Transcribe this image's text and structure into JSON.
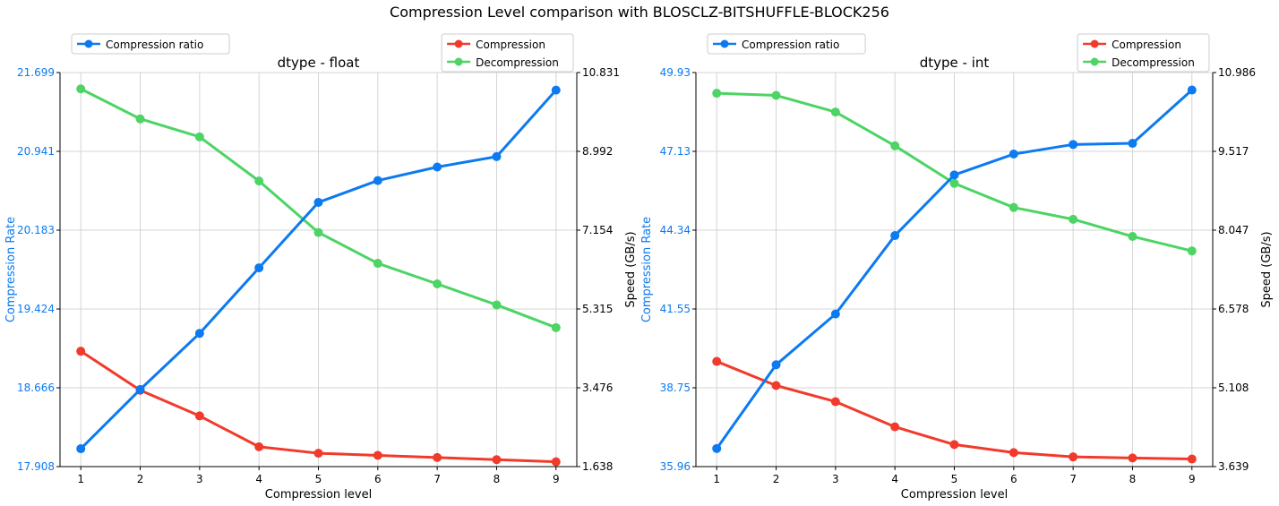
{
  "figure": {
    "title": "Compression Level comparison with BLOSCLZ-BITSHUFFLE-BLOCK256"
  },
  "colors": {
    "ratio": "#0c7af0",
    "compression": "#f23a2c",
    "decompression": "#4cd464",
    "left_axis_text": "#0c7af0",
    "grid": "#d4d4d4"
  },
  "chart_data": [
    {
      "type": "line",
      "title": "dtype - float",
      "xlabel": "Compression level",
      "ylabel_left": "Compression Rate",
      "ylabel_right": "Speed (GB/s)",
      "x": [
        1,
        2,
        3,
        4,
        5,
        6,
        7,
        8,
        9
      ],
      "ylim_left": [
        17.908,
        21.699
      ],
      "ylim_right": [
        1.638,
        10.831
      ],
      "yticks_left": [
        "17.908",
        "18.666",
        "19.424",
        "20.183",
        "20.941",
        "21.699"
      ],
      "yticks_right": [
        "1.638",
        "3.476",
        "5.315",
        "7.154",
        "8.992",
        "10.831"
      ],
      "grid": true,
      "legend_left": {
        "placement": "top-left",
        "entries": [
          "Compression ratio"
        ]
      },
      "legend_right": {
        "placement": "top-right",
        "entries": [
          "Compression",
          "Decompression"
        ]
      },
      "series": [
        {
          "name": "Compression ratio",
          "axis": "left",
          "values": [
            18.08,
            18.65,
            19.19,
            19.82,
            20.45,
            20.66,
            20.79,
            20.89,
            21.53
          ]
        },
        {
          "name": "Compression",
          "axis": "right",
          "values": [
            4.33,
            3.42,
            2.82,
            2.1,
            1.95,
            1.9,
            1.85,
            1.8,
            1.75
          ]
        },
        {
          "name": "Decompression",
          "axis": "right",
          "values": [
            10.45,
            9.75,
            9.33,
            8.3,
            7.1,
            6.38,
            5.9,
            5.41,
            4.88
          ]
        }
      ]
    },
    {
      "type": "line",
      "title": "dtype - int",
      "xlabel": "Compression level",
      "ylabel_left": "Compression Rate",
      "ylabel_right": "Speed (GB/s)",
      "x": [
        1,
        2,
        3,
        4,
        5,
        6,
        7,
        8,
        9
      ],
      "ylim_left": [
        35.96,
        49.93
      ],
      "ylim_right": [
        3.639,
        10.986
      ],
      "yticks_left": [
        "35.96",
        "38.75",
        "41.55",
        "44.34",
        "47.13",
        "49.93"
      ],
      "yticks_right": [
        "3.639",
        "5.108",
        "6.578",
        "8.047",
        "9.517",
        "10.986"
      ],
      "grid": true,
      "legend_left": {
        "placement": "top-left",
        "entries": [
          "Compression ratio"
        ]
      },
      "legend_right": {
        "placement": "top-right",
        "entries": [
          "Compression",
          "Decompression"
        ]
      },
      "series": [
        {
          "name": "Compression ratio",
          "axis": "left",
          "values": [
            36.6,
            39.57,
            41.37,
            44.15,
            46.3,
            47.04,
            47.38,
            47.42,
            49.31
          ]
        },
        {
          "name": "Compression",
          "axis": "right",
          "values": [
            5.6,
            5.15,
            4.85,
            4.38,
            4.05,
            3.9,
            3.82,
            3.8,
            3.78
          ]
        },
        {
          "name": "Decompression",
          "axis": "right",
          "values": [
            10.6,
            10.56,
            10.25,
            9.62,
            8.92,
            8.47,
            8.25,
            7.93,
            7.66
          ]
        }
      ]
    }
  ]
}
